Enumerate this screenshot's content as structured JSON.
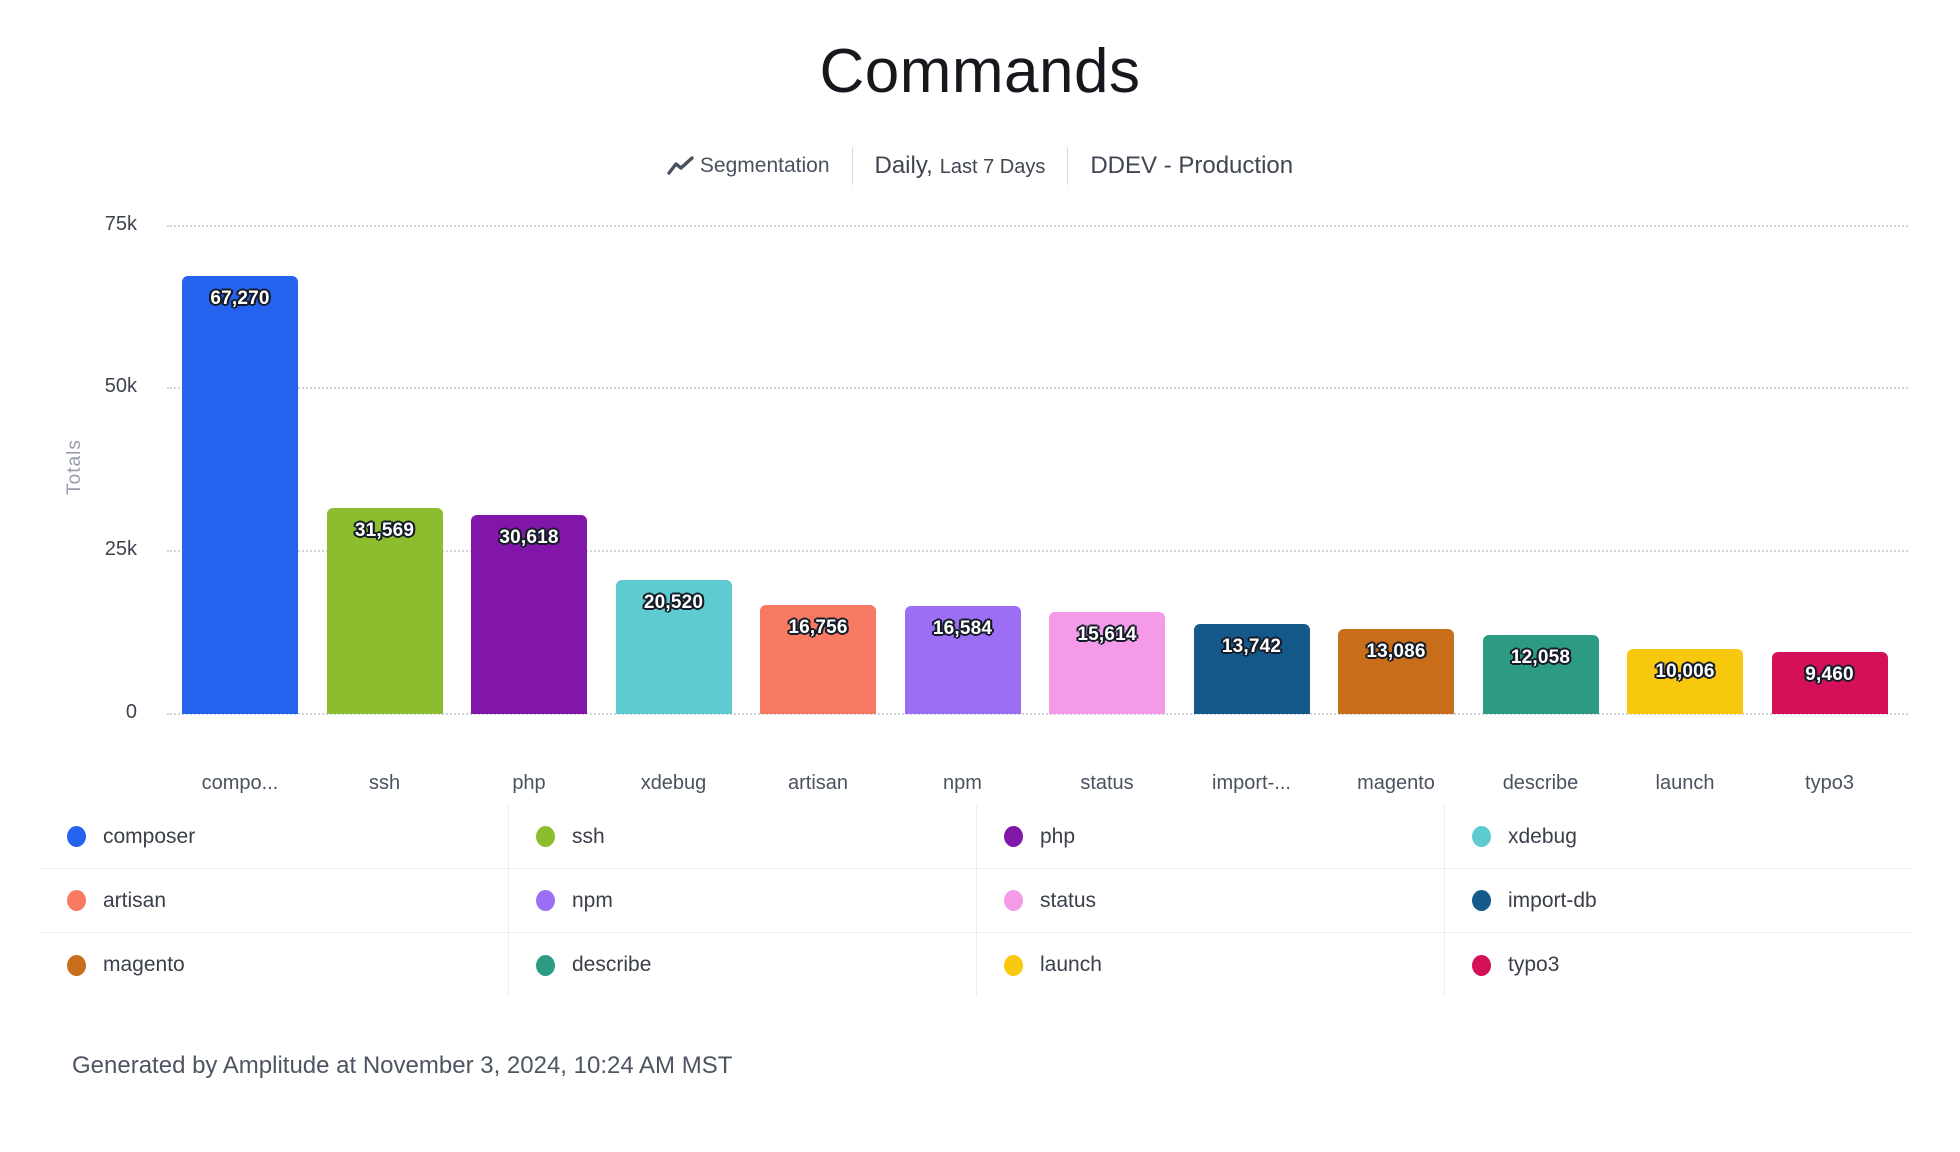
{
  "title": "Commands",
  "header": {
    "segmentation_label": "Segmentation",
    "granularity": "Daily,",
    "date_range": "Last 7 Days",
    "project": "DDEV - Production"
  },
  "chart_data": {
    "type": "bar",
    "title": "Commands",
    "xlabel": "",
    "ylabel": "Totals",
    "ylim": [
      0,
      75000
    ],
    "ytick_values": [
      0,
      25000,
      50000,
      75000
    ],
    "ytick_labels": [
      "0",
      "25k",
      "50k",
      "75k"
    ],
    "grid": "horizontal-dotted",
    "legend_position": "bottom",
    "categories": [
      "composer",
      "ssh",
      "php",
      "xdebug",
      "artisan",
      "npm",
      "status",
      "import-db",
      "magento",
      "describe",
      "launch",
      "typo3"
    ],
    "x_tick_labels": [
      "compo...",
      "ssh",
      "php",
      "xdebug",
      "artisan",
      "npm",
      "status",
      "import-...",
      "magento",
      "describe",
      "launch",
      "typo3"
    ],
    "values": [
      67270,
      31569,
      30618,
      20520,
      16756,
      16584,
      15614,
      13742,
      13086,
      12058,
      10006,
      9460
    ],
    "value_labels": [
      "67,270",
      "31,569",
      "30,618",
      "20,520",
      "16,756",
      "16,584",
      "15,614",
      "13,742",
      "13,086",
      "12,058",
      "10,006",
      "9,460"
    ],
    "colors": [
      "#2563ee",
      "#8cbd2f",
      "#8116a8",
      "#5ecbd1",
      "#f97a62",
      "#9c6ef3",
      "#f49ae8",
      "#15598a",
      "#c86e1a",
      "#2d9b83",
      "#f8c80e",
      "#d31058"
    ]
  },
  "legend": {
    "items": [
      {
        "label": "composer",
        "color": "#2563ee"
      },
      {
        "label": "ssh",
        "color": "#8cbd2f"
      },
      {
        "label": "php",
        "color": "#8116a8"
      },
      {
        "label": "xdebug",
        "color": "#5ecbd1"
      },
      {
        "label": "artisan",
        "color": "#f97a62"
      },
      {
        "label": "npm",
        "color": "#9c6ef3"
      },
      {
        "label": "status",
        "color": "#f49ae8"
      },
      {
        "label": "import-db",
        "color": "#15598a"
      },
      {
        "label": "magento",
        "color": "#c86e1a"
      },
      {
        "label": "describe",
        "color": "#2d9b83"
      },
      {
        "label": "launch",
        "color": "#f8c80e"
      },
      {
        "label": "typo3",
        "color": "#d31058"
      }
    ]
  },
  "footer": "Generated by Amplitude at November 3, 2024, 10:24 AM MST"
}
